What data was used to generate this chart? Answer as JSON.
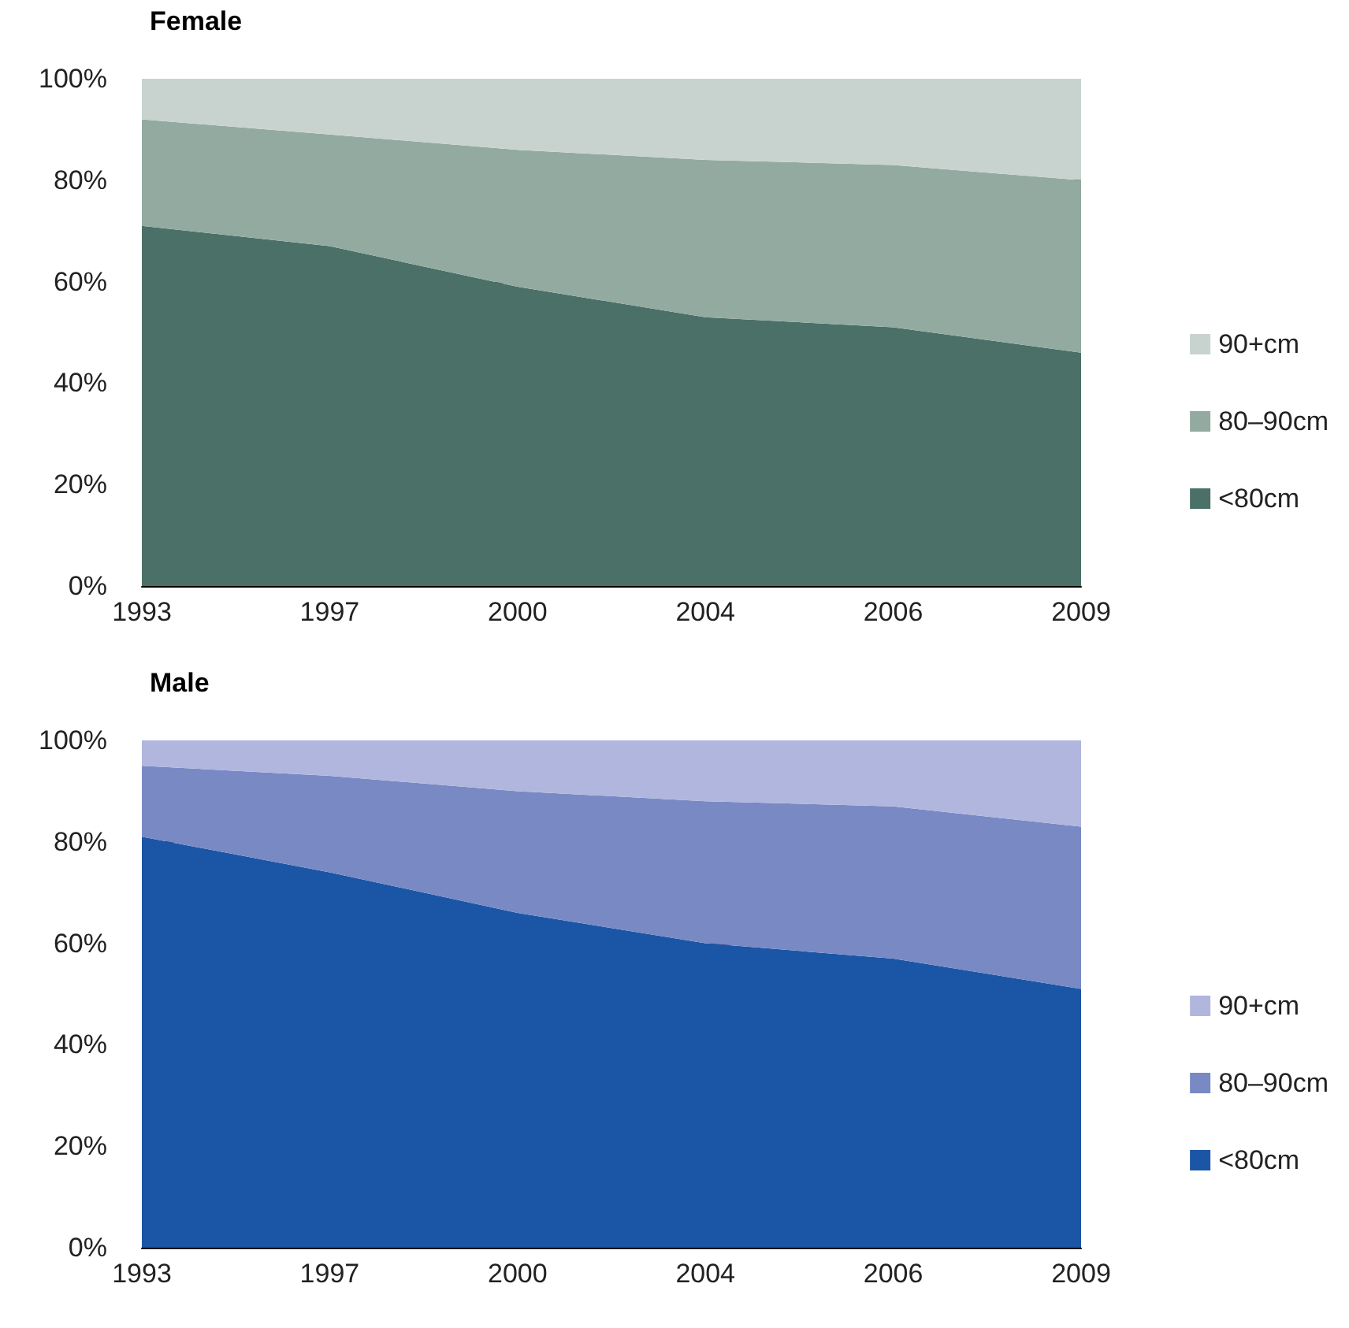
{
  "chart_data": [
    {
      "type": "area",
      "title": "Female",
      "categories": [
        "1993",
        "1997",
        "2000",
        "2004",
        "2006",
        "2009"
      ],
      "stacked": true,
      "series": [
        {
          "name": "<80cm",
          "color": "#4a7068",
          "values": [
            71,
            67,
            59,
            53,
            51,
            46
          ]
        },
        {
          "name": "80–90cm",
          "color": "#93aaa0",
          "values": [
            21,
            22,
            27,
            31,
            32,
            34
          ]
        },
        {
          "name": "90+cm",
          "color": "#c8d3cf",
          "values": [
            8,
            11,
            14,
            16,
            17,
            20
          ]
        }
      ],
      "ylim": [
        0,
        100
      ],
      "yticks": [
        {
          "value": 0,
          "label": "0%"
        },
        {
          "value": 20,
          "label": "20%"
        },
        {
          "value": 40,
          "label": "40%"
        },
        {
          "value": 60,
          "label": "60%"
        },
        {
          "value": 80,
          "label": "80%"
        },
        {
          "value": 100,
          "label": "100%"
        }
      ],
      "grid": "y",
      "legend": "right"
    },
    {
      "type": "area",
      "title": "Male",
      "categories": [
        "1993",
        "1997",
        "2000",
        "2004",
        "2006",
        "2009"
      ],
      "stacked": true,
      "series": [
        {
          "name": "<80cm",
          "color": "#1b56a6",
          "values": [
            81,
            74,
            66,
            60,
            57,
            51
          ]
        },
        {
          "name": "80–90cm",
          "color": "#7889c4",
          "values": [
            14,
            19,
            24,
            28,
            30,
            32
          ]
        },
        {
          "name": "90+cm",
          "color": "#b0b6dd",
          "values": [
            5,
            7,
            10,
            12,
            13,
            17
          ]
        }
      ],
      "ylim": [
        0,
        100
      ],
      "yticks": [
        {
          "value": 0,
          "label": "0%"
        },
        {
          "value": 20,
          "label": "20%"
        },
        {
          "value": 40,
          "label": "40%"
        },
        {
          "value": 60,
          "label": "60%"
        },
        {
          "value": 80,
          "label": "80%"
        },
        {
          "value": 100,
          "label": "100%"
        }
      ],
      "grid": "y",
      "legend": "right"
    }
  ]
}
